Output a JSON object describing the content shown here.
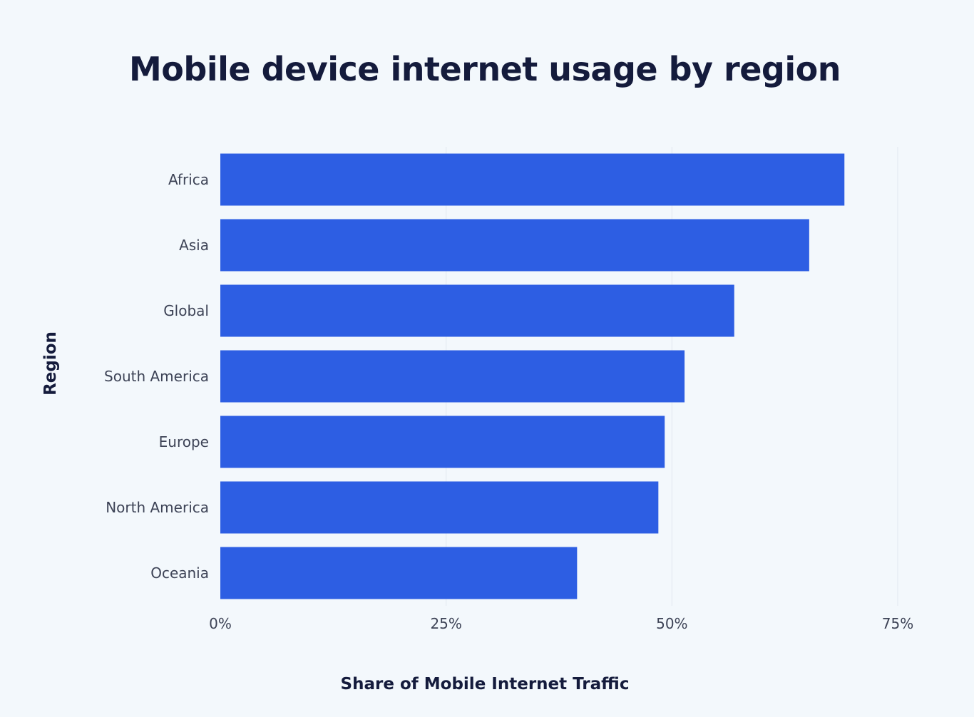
{
  "chart_data": {
    "type": "bar",
    "orientation": "horizontal",
    "title": "Mobile device internet usage by region",
    "xlabel": "Share of Mobile Internet Traffic",
    "ylabel": "Region",
    "categories": [
      "Africa",
      "Asia",
      "Global",
      "South America",
      "Europe",
      "North America",
      "Oceania"
    ],
    "values": [
      69.1,
      65.2,
      56.9,
      51.4,
      49.2,
      48.5,
      39.5
    ],
    "xlim": [
      0,
      75
    ],
    "x_ticks": [
      0,
      25,
      50,
      75
    ],
    "x_tick_labels": [
      "0%",
      "25%",
      "50%",
      "75%"
    ],
    "grid": "vertical",
    "bar_color": "#2d5ee3",
    "background_color": "#f3f8fc"
  }
}
